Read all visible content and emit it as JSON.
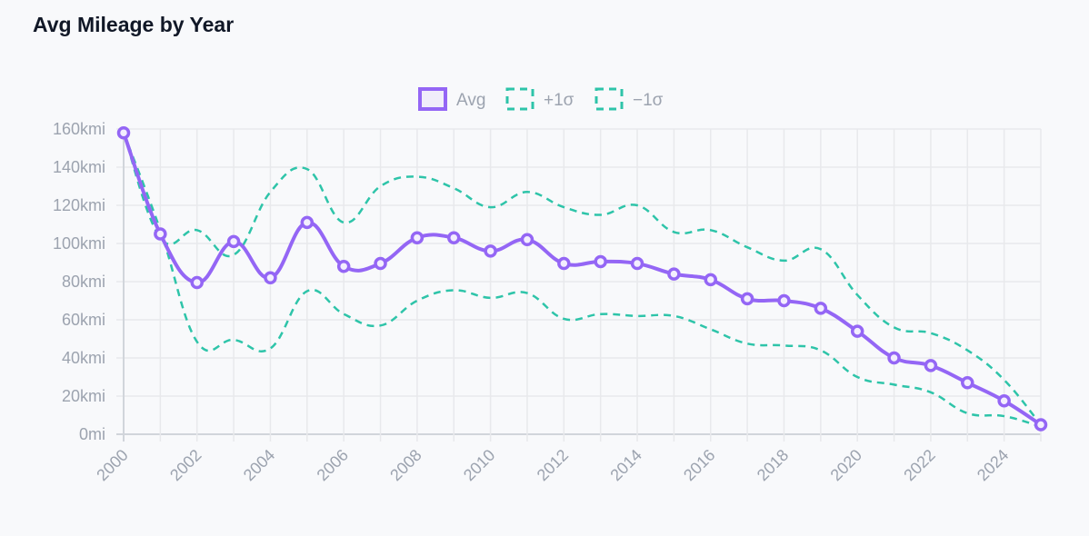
{
  "title": "Avg Mileage by Year",
  "chart_data": {
    "type": "line",
    "title": "Avg Mileage by Year",
    "xlabel": "",
    "ylabel": "",
    "x": [
      2000,
      2001,
      2002,
      2003,
      2004,
      2005,
      2006,
      2007,
      2008,
      2009,
      2010,
      2011,
      2012,
      2013,
      2014,
      2015,
      2016,
      2017,
      2018,
      2019,
      2020,
      2021,
      2022,
      2023,
      2024,
      2025
    ],
    "xticks": [
      "2000",
      "2002",
      "2004",
      "2006",
      "2008",
      "2010",
      "2012",
      "2014",
      "2016",
      "2018",
      "2020",
      "2022",
      "2024"
    ],
    "yticks": [
      "0mi",
      "20kmi",
      "40kmi",
      "60kmi",
      "80kmi",
      "100kmi",
      "120kmi",
      "140kmi",
      "160kmi"
    ],
    "ylim": [
      0,
      160
    ],
    "y_unit": "kmi",
    "grid": true,
    "legend_placement": "top",
    "series": [
      {
        "name": "Avg",
        "color": "#9466f5",
        "style": "solid",
        "markers": true,
        "values": [
          158,
          105,
          79.5,
          101,
          82,
          111,
          88,
          89.5,
          103,
          103,
          96,
          102,
          89.5,
          90.5,
          89.5,
          84,
          81,
          71,
          70,
          66,
          54,
          40,
          36,
          27,
          17.5,
          5
        ]
      },
      {
        "name": "+1σ",
        "color": "#2ec4a9",
        "style": "dashed",
        "values": [
          158,
          103,
          107,
          94,
          127,
          139,
          111,
          130,
          135,
          129,
          119,
          127,
          119,
          115,
          120,
          106,
          107,
          98,
          91,
          97,
          73,
          56,
          53,
          44,
          28.5,
          5
        ]
      },
      {
        "name": "−1σ",
        "color": "#2ec4a9",
        "style": "dashed",
        "values": [
          158,
          107,
          48.5,
          49.5,
          45,
          75,
          63,
          57,
          70,
          75.5,
          71.5,
          74,
          60.5,
          63,
          62,
          62,
          55,
          47.5,
          46.5,
          44,
          30,
          26,
          22,
          11,
          9.5,
          4
        ]
      }
    ]
  }
}
